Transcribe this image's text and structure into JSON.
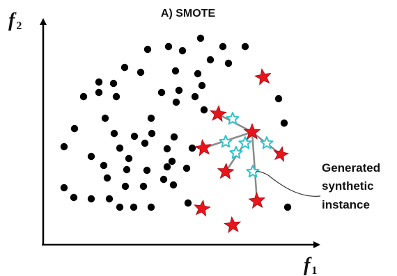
{
  "title": "A) SMOTE",
  "x_axis": {
    "symbol": "f",
    "subscript": "1"
  },
  "y_axis": {
    "symbol": "f",
    "subscript": "2"
  },
  "annotation": {
    "line1": "Generated",
    "line2": "synthetic",
    "line3": "instance"
  },
  "colors": {
    "majority": "#000000",
    "minority": "#e8141c",
    "synthetic": "#2ec4c9",
    "connector": "#8a8a8a",
    "axis": "#000000"
  },
  "legend_items": [
    "majority-dot",
    "minority-star",
    "synthetic-star"
  ]
}
